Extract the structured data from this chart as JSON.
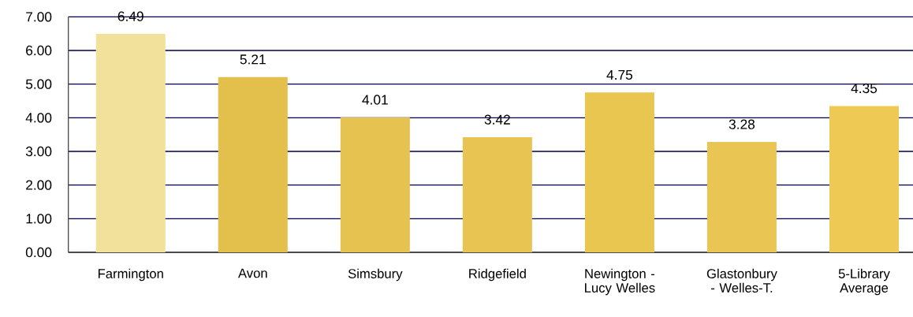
{
  "chart_data": {
    "type": "bar",
    "categories": [
      "Farmington",
      "Avon",
      "Simsbury",
      "Ridgefield",
      "Newington - Lucy Welles",
      "Glastonbury - Welles-T.",
      "5-Library Average"
    ],
    "values": [
      6.49,
      5.21,
      4.01,
      3.42,
      4.75,
      3.28,
      4.35
    ],
    "colors": [
      "#f2e19a",
      "#e3bf4c",
      "#e6c250",
      "#e8c552",
      "#e8c650",
      "#e9c653",
      "#eec954"
    ],
    "ylim": [
      0,
      7
    ],
    "yticks": [
      {
        "value": 0,
        "label": "0.00"
      },
      {
        "value": 1,
        "label": "1.00"
      },
      {
        "value": 2,
        "label": "2.00"
      },
      {
        "value": 3,
        "label": "3.00"
      },
      {
        "value": 4,
        "label": "4.00"
      },
      {
        "value": 5,
        "label": "5.00"
      },
      {
        "value": 6,
        "label": "6.00"
      },
      {
        "value": 7,
        "label": "7.00"
      }
    ],
    "grid": "y",
    "data_labels": true
  }
}
